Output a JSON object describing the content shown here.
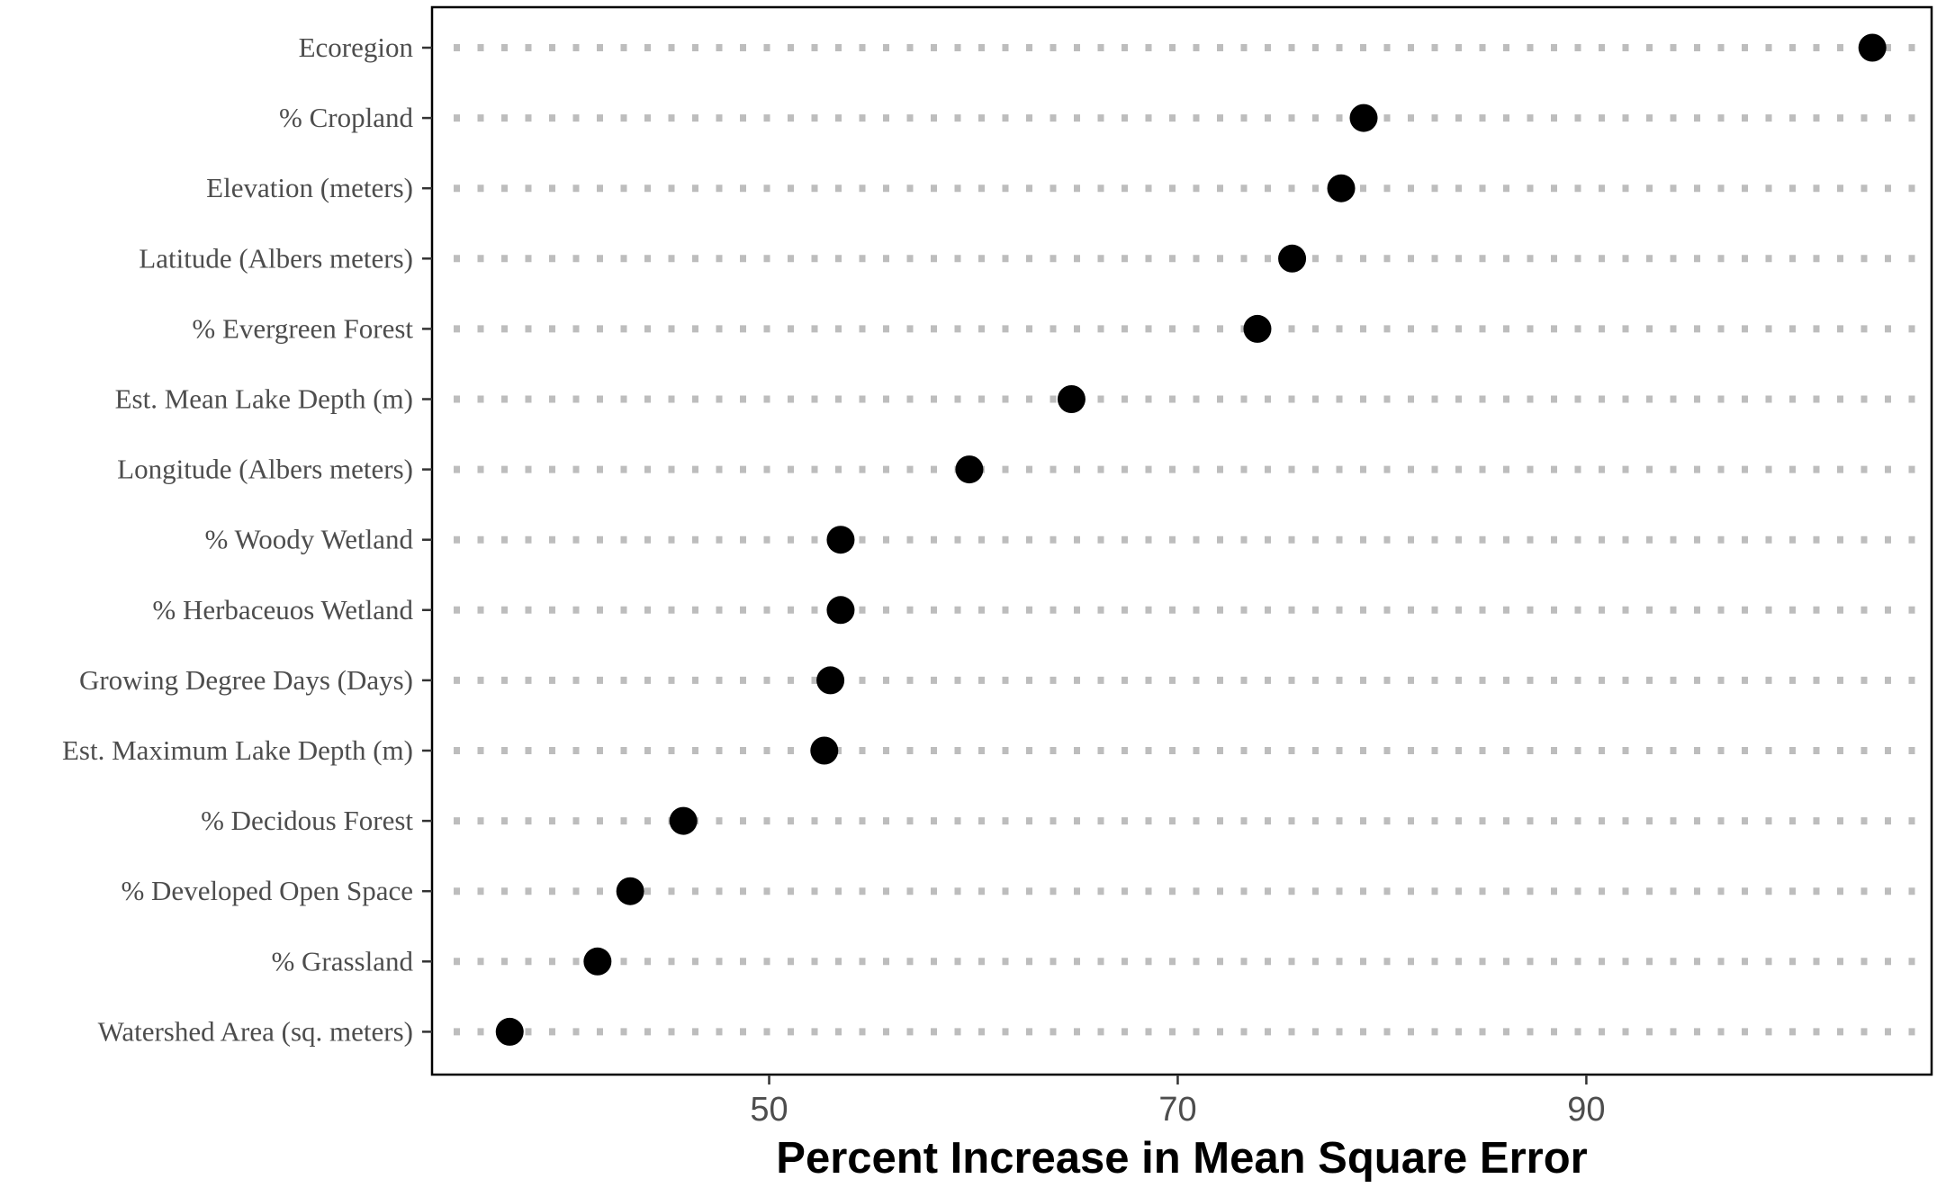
{
  "chart_data": {
    "type": "scatter",
    "title": "",
    "xlabel": "Percent Increase in Mean Square Error",
    "ylabel": "",
    "xlim": [
      33.5,
      106.9
    ],
    "xticks": [
      50,
      70,
      90
    ],
    "grid": "dotted horizontal guide per category",
    "legend": "none",
    "categories": [
      "Ecoregion",
      "% Cropland",
      "Elevation (meters)",
      "Latitude  (Albers meters)",
      "% Evergreen Forest",
      "Est. Mean Lake Depth (m)",
      "Longitude (Albers meters)",
      "% Woody Wetland",
      "% Herbaceuos Wetland",
      "Growing Degree Days (Days)",
      "Est. Maximum Lake Depth (m)",
      "% Decidous Forest",
      "% Developed Open Space",
      "% Grassland",
      "Watershed Area (sq. meters)"
    ],
    "values": [
      104.0,
      79.1,
      78.0,
      75.6,
      73.9,
      64.8,
      59.8,
      53.5,
      53.5,
      53.0,
      52.7,
      45.8,
      43.2,
      41.6,
      37.3
    ],
    "colors": {
      "point": "#000000",
      "guide": "#bdbdbd",
      "axis_text": "#4d4d4d",
      "frame": "#000000"
    }
  }
}
